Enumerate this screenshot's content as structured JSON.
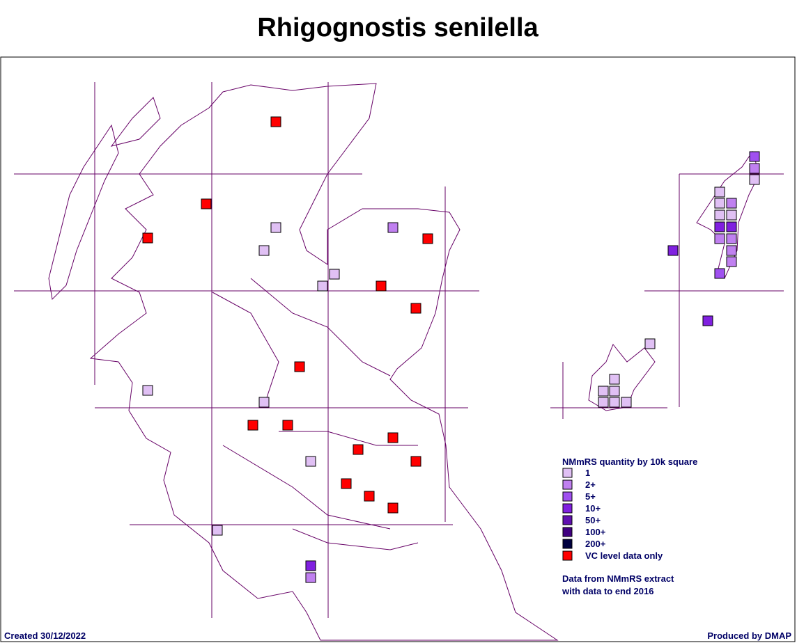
{
  "map": {
    "title": "Rhigognostis senilella",
    "legend": {
      "title": "NMmRS quantity by 10k square",
      "items": [
        {
          "label": "1",
          "color": "#e0c0f4"
        },
        {
          "label": "2+",
          "color": "#c080f0"
        },
        {
          "label": "5+",
          "color": "#a050f0"
        },
        {
          "label": "10+",
          "color": "#8020e0"
        },
        {
          "label": "50+",
          "color": "#6010b0"
        },
        {
          "label": "100+",
          "color": "#400080"
        },
        {
          "label": "200+",
          "color": "#000040"
        },
        {
          "label": "VC level data only",
          "color": "#ff0000"
        }
      ]
    },
    "note": [
      "Data from NMmRS extract",
      "with data to end 2016"
    ],
    "created": "Created 30/12/2022",
    "produced": "Produced by DMAP"
  }
}
